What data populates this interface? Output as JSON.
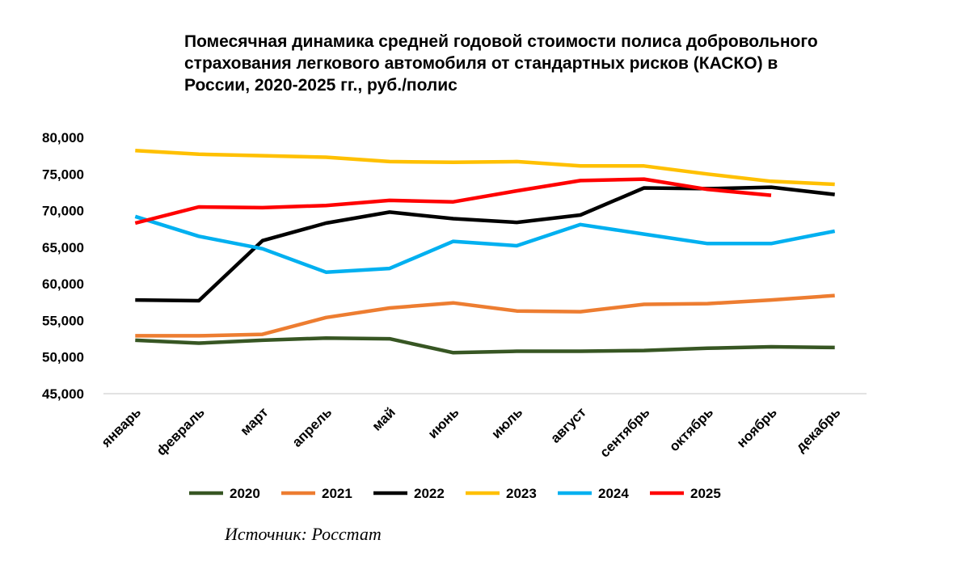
{
  "chart_data": {
    "type": "line",
    "title_lines": [
      "Помесячная динамика средней годовой стоимости полиса добровольного",
      "страхования легкового автомобиля от стандартных рисков (КАСКО) в",
      "России, 2020-2025 гг., руб./полис"
    ],
    "categories": [
      "январь",
      "февраль",
      "март",
      "апрель",
      "май",
      "июнь",
      "июль",
      "август",
      "сентябрь",
      "октябрь",
      "ноябрь",
      "декабрь"
    ],
    "ylim": [
      45000,
      80000
    ],
    "yticks": [
      45000,
      50000,
      55000,
      60000,
      65000,
      70000,
      75000,
      80000
    ],
    "ytick_labels": [
      "45,000",
      "50,000",
      "55,000",
      "60,000",
      "65,000",
      "70,000",
      "75,000",
      "80,000"
    ],
    "grid": false,
    "legend_position": "bottom",
    "series": [
      {
        "name": "2020",
        "color": "#375623",
        "values": [
          52300,
          51900,
          52300,
          52600,
          52500,
          50600,
          50800,
          50800,
          50900,
          51200,
          51400,
          51300
        ]
      },
      {
        "name": "2021",
        "color": "#ED7D31",
        "values": [
          52900,
          52900,
          53100,
          55400,
          56700,
          57400,
          56300,
          56200,
          57200,
          57300,
          57800,
          58400
        ]
      },
      {
        "name": "2022",
        "color": "#000000",
        "values": [
          57800,
          57700,
          65900,
          68300,
          69800,
          68900,
          68400,
          69400,
          73100,
          73000,
          73200,
          72200
        ]
      },
      {
        "name": "2023",
        "color": "#FFC000",
        "values": [
          78200,
          77700,
          77500,
          77300,
          76700,
          76600,
          76700,
          76100,
          76100,
          75000,
          74000,
          73600
        ]
      },
      {
        "name": "2024",
        "color": "#00B0F0",
        "values": [
          69200,
          66500,
          64800,
          61600,
          62100,
          65800,
          65200,
          68100,
          66800,
          65500,
          65500,
          67200
        ]
      },
      {
        "name": "2025",
        "color": "#FF0000",
        "values": [
          68300,
          70500,
          70400,
          70700,
          71400,
          71200,
          72700,
          74100,
          74300,
          72900,
          72100,
          null
        ]
      }
    ]
  },
  "source": "Источник: Росстат"
}
